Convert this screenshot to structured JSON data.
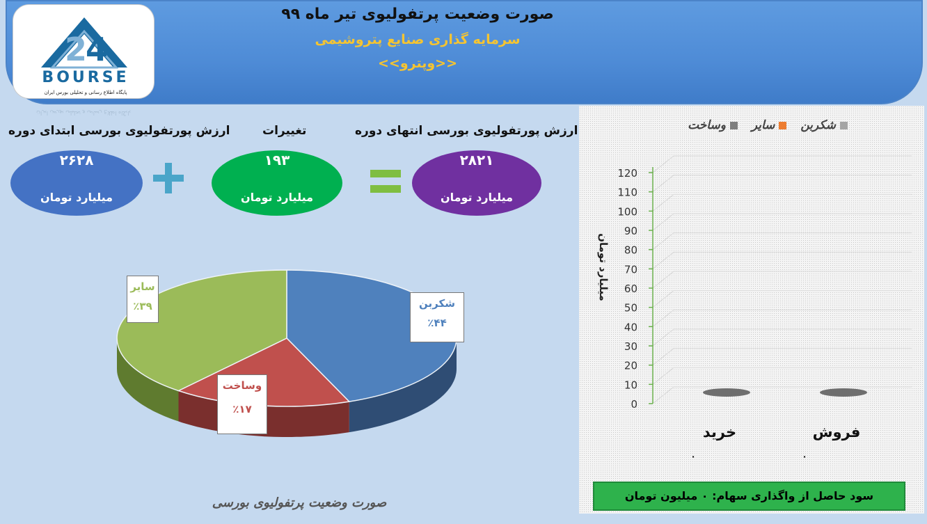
{
  "header": {
    "title": "صورت وضعیت پرتفولیوی تیر ماه ۹۹",
    "company": "سرمایه گذاری صنایع پتروشیمی",
    "ticker": "<<وپترو>>"
  },
  "logo": {
    "wordmark": "BOURSE",
    "tagline": "پایگاه اطلاع رسانی و تحلیلی بورس ایران"
  },
  "summary": {
    "start_label": "ارزش پورتفولیوی بورسی ابتدای دوره",
    "start_value": "۲۶۲۸",
    "change_label": "تغییرات",
    "change_value": "۱۹۳",
    "end_label": "ارزش پورتفولیوی بورسی انتهای دوره",
    "end_value": "۲۸۲۱",
    "unit": "میلیارد تومان",
    "plus": "+",
    "equals": "="
  },
  "colors": {
    "start": "#4472c4",
    "change": "#00b050",
    "end": "#7030a0",
    "op": "#4aa5c9",
    "eq": "#7fbe41"
  },
  "chart_data": [
    {
      "type": "pie",
      "title": "صورت وضعیت پرتفولیوی بورسی",
      "slices": [
        {
          "name": "شکربن",
          "value": 44,
          "label": "٪۴۴",
          "color": "#4f81bd",
          "side": "#2f4d74"
        },
        {
          "name": "وساخت",
          "value": 17,
          "label": "٪۱۷",
          "color": "#c0504d",
          "side": "#7a2f2d"
        },
        {
          "name": "سایر",
          "value": 39,
          "label": "٪۳۹",
          "color": "#9bbb59",
          "side": "#5f7b2f"
        }
      ]
    },
    {
      "type": "bar",
      "title": "",
      "categories": [
        "خرید",
        "فروش"
      ],
      "category_values": [
        "۰",
        "۰"
      ],
      "series": [
        {
          "name": "شکربن",
          "color": "#a5a5a5",
          "values": [
            0,
            0
          ]
        },
        {
          "name": "سایر",
          "color": "#ed7d31",
          "values": [
            0,
            0
          ]
        },
        {
          "name": "وساخت",
          "color": "#7f7f7f",
          "values": [
            0,
            0
          ]
        }
      ],
      "ylabel": "میلیارد تومان",
      "ylim": [
        0,
        120
      ],
      "yticks": [
        0,
        10,
        20,
        30,
        40,
        50,
        60,
        70,
        80,
        90,
        100,
        110,
        120
      ],
      "legend": "top"
    }
  ],
  "profit": {
    "text": "سود حاصل از واگذاری سهام: ۰ میلیون تومان"
  }
}
